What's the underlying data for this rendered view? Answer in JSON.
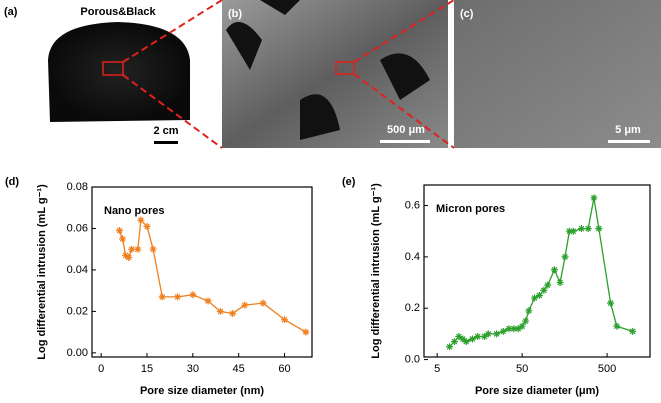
{
  "panels": {
    "a": {
      "label": "(a)",
      "title": "Porous&Black",
      "scale": "2 cm"
    },
    "b": {
      "label": "(b)",
      "scale": "500 μm"
    },
    "c": {
      "label": "(c)",
      "scale": "5 μm"
    }
  },
  "chart_data": [
    {
      "type": "line",
      "label": "(d)",
      "annotation": "Nano pores",
      "xlabel": "Pore size diameter (nm)",
      "ylabel": "Log differential intrusion (mL g⁻¹)",
      "x": [
        6,
        7,
        8,
        9,
        10,
        12,
        13,
        15,
        17,
        20,
        25,
        30,
        35,
        39,
        43,
        47,
        53,
        60,
        67
      ],
      "series": [
        {
          "name": "Nano pores",
          "color": "#f07f1e",
          "values": [
            0.059,
            0.055,
            0.047,
            0.046,
            0.05,
            0.05,
            0.064,
            0.061,
            0.05,
            0.027,
            0.027,
            0.028,
            0.025,
            0.02,
            0.019,
            0.023,
            0.024,
            0.016,
            0.01
          ]
        }
      ],
      "xlim": [
        -3,
        69
      ],
      "xticks": [
        0,
        15,
        30,
        45,
        60
      ],
      "ylim": [
        -0.002,
        0.08
      ],
      "yticks": [
        {
          "value": 0,
          "label": "0.00"
        },
        0.02,
        0.04,
        0.06,
        0.08
      ],
      "log_x": false
    },
    {
      "type": "line",
      "label": "(e)",
      "annotation": "Micron pores",
      "xlabel": "Pore size diameter (μm)",
      "ylabel": "Log differential intrusion (mL g⁻¹)",
      "x": [
        7,
        8,
        9,
        10,
        11,
        13,
        15,
        18,
        20,
        25,
        30,
        35,
        40,
        45,
        50,
        55,
        60,
        70,
        80,
        90,
        100,
        120,
        140,
        160,
        180,
        200,
        250,
        300,
        350,
        400,
        550,
        650,
        1000
      ],
      "series": [
        {
          "name": "Micron pores",
          "color": "#2ca02c",
          "values": [
            0.05,
            0.07,
            0.09,
            0.08,
            0.07,
            0.08,
            0.09,
            0.09,
            0.1,
            0.1,
            0.11,
            0.12,
            0.12,
            0.12,
            0.13,
            0.15,
            0.19,
            0.24,
            0.25,
            0.27,
            0.29,
            0.35,
            0.3,
            0.4,
            0.5,
            0.5,
            0.51,
            0.51,
            0.63,
            0.51,
            0.22,
            0.13,
            0.11
          ]
        }
      ],
      "xlim": [
        3.5,
        1600
      ],
      "xticks": [
        5,
        50,
        500
      ],
      "ylim": [
        0.01,
        0.68
      ],
      "yticks": [
        {
          "value": 0,
          "label": "0.0"
        },
        0.2,
        0.4,
        0.6
      ],
      "log_x": true
    }
  ]
}
